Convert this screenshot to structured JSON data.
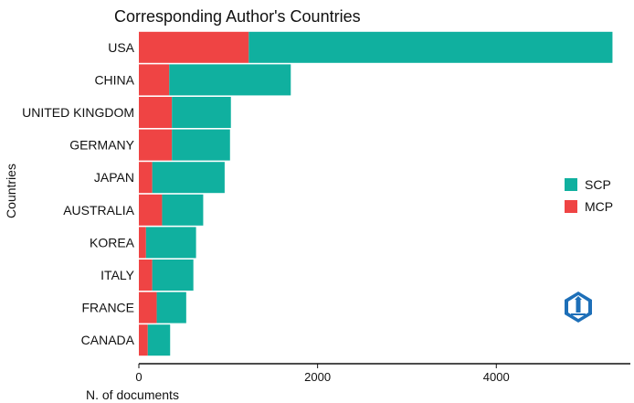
{
  "chart_data": {
    "type": "bar",
    "orientation": "horizontal",
    "stacked": true,
    "title": "Corresponding Author's Countries",
    "xlabel": "N. of documents",
    "ylabel": "Countries",
    "categories": [
      "USA",
      "CHINA",
      "UNITED KINGDOM",
      "GERMANY",
      "JAPAN",
      "AUSTRALIA",
      "KOREA",
      "ITALY",
      "FRANCE",
      "CANADA"
    ],
    "series": [
      {
        "name": "MCP",
        "color": "#ef4444",
        "values": [
          1230,
          340,
          370,
          370,
          150,
          260,
          80,
          150,
          200,
          100
        ]
      },
      {
        "name": "SCP",
        "color": "#10b09f",
        "values": [
          4070,
          1360,
          660,
          650,
          810,
          460,
          560,
          460,
          330,
          250
        ]
      }
    ],
    "xlim": [
      0,
      5500
    ],
    "xticks": [
      "0",
      "2000",
      "4000"
    ],
    "grid": false,
    "legend": {
      "position": "right",
      "entries": [
        "SCP",
        "MCP"
      ]
    }
  },
  "watermark": {
    "icon": "lighthouse-shield-icon",
    "color": "#1d6fb8"
  }
}
